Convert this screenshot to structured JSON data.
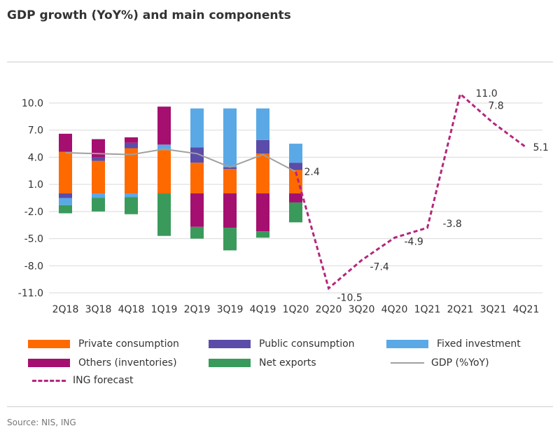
{
  "title": "GDP growth (YoY%) and main components",
  "source": "Source: NIS, ING",
  "colors": {
    "private_consumption": "#ff6a00",
    "public_consumption": "#5a4ca8",
    "fixed_investment": "#5aa9e6",
    "others": "#a50f6f",
    "net_exports": "#3a9a5b",
    "gdp": "#a0a0a0",
    "forecast": "#b5267d"
  },
  "legend": [
    {
      "label": "Private consumption",
      "color": "#ff6a00",
      "kind": "bar"
    },
    {
      "label": "Public consumption",
      "color": "#5a4ca8",
      "kind": "bar"
    },
    {
      "label": "Fixed investment",
      "color": "#5aa9e6",
      "kind": "bar"
    },
    {
      "label": "Others (inventories)",
      "color": "#a50f6f",
      "kind": "bar"
    },
    {
      "label": "Net exports",
      "color": "#3a9a5b",
      "kind": "bar"
    },
    {
      "label": "GDP (%YoY)",
      "color": "#a0a0a0",
      "kind": "line"
    },
    {
      "label": "ING forecast",
      "color": "#b5267d",
      "kind": "dashed"
    }
  ],
  "chart_data": {
    "type": "bar",
    "title": "GDP growth (YoY%) and main components",
    "xlabel": "",
    "ylabel": "",
    "ylim": [
      -11.0,
      11.5
    ],
    "yticks": [
      10.0,
      7.0,
      4.0,
      1.0,
      -2.0,
      -5.0,
      -8.0,
      -11.0
    ],
    "ytick_labels": [
      "10.0",
      "7.0",
      "4.0",
      "1.0",
      "-2.0",
      "-5.0",
      "-8.0",
      "-11.0"
    ],
    "categories": [
      "2Q18",
      "3Q18",
      "4Q18",
      "1Q19",
      "2Q19",
      "3Q19",
      "4Q19",
      "1Q20",
      "2Q20",
      "3Q20",
      "4Q20",
      "1Q21",
      "2Q21",
      "3Q21",
      "4Q21"
    ],
    "series": [
      {
        "name": "Private consumption",
        "values": [
          4.6,
          3.6,
          5.0,
          4.8,
          3.4,
          2.7,
          4.4,
          2.6,
          null,
          null,
          null,
          null,
          null,
          null,
          null
        ]
      },
      {
        "name": "Public consumption",
        "values": [
          -0.5,
          0.4,
          0.6,
          0.0,
          1.7,
          0.2,
          1.5,
          0.8,
          null,
          null,
          null,
          null,
          null,
          null,
          null
        ]
      },
      {
        "name": "Fixed investment",
        "values": [
          -0.8,
          -0.5,
          -0.4,
          0.6,
          4.3,
          6.5,
          3.5,
          2.1,
          null,
          null,
          null,
          null,
          null,
          null,
          null
        ]
      },
      {
        "name": "Others (inventories)",
        "values": [
          2.0,
          2.0,
          0.6,
          4.2,
          -3.7,
          -3.8,
          -4.2,
          -1.0,
          null,
          null,
          null,
          null,
          null,
          null,
          null
        ]
      },
      {
        "name": "Net exports",
        "values": [
          -0.9,
          -1.5,
          -1.9,
          -4.7,
          -1.3,
          -2.5,
          -0.7,
          -2.2,
          null,
          null,
          null,
          null,
          null,
          null,
          null
        ]
      },
      {
        "name": "GDP (%YoY)",
        "values": [
          4.5,
          4.4,
          4.3,
          4.9,
          4.4,
          2.9,
          4.3,
          2.4,
          null,
          null,
          null,
          null,
          null,
          null,
          null
        ]
      },
      {
        "name": "ING forecast",
        "values": [
          null,
          null,
          null,
          null,
          null,
          null,
          null,
          2.4,
          -10.5,
          -7.4,
          -4.9,
          -3.8,
          11.0,
          7.8,
          5.1
        ]
      }
    ],
    "data_labels": [
      {
        "category": "1Q20",
        "text": "2.4"
      },
      {
        "category": "2Q20",
        "text": "-10.5"
      },
      {
        "category": "3Q20",
        "text": "-7.4"
      },
      {
        "category": "4Q20",
        "text": "-4.9"
      },
      {
        "category": "1Q21",
        "text": "-3.8"
      },
      {
        "category": "2Q21",
        "text": "11.0"
      },
      {
        "category": "3Q21",
        "text": "7.8"
      },
      {
        "category": "4Q21",
        "text": "5.1"
      }
    ],
    "grid": true,
    "legend_position": "bottom"
  }
}
